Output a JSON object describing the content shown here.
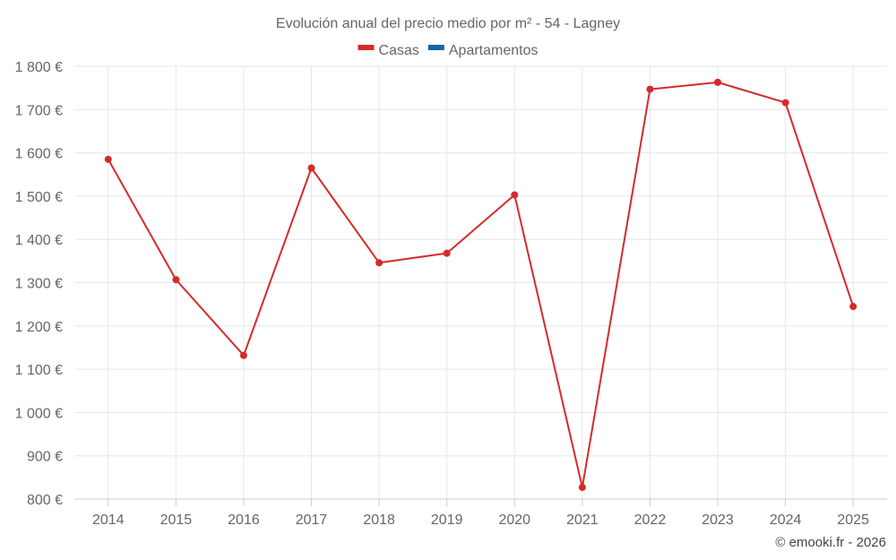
{
  "chart_data": {
    "type": "line",
    "title": "Evolución anual del precio medio por m² - 54 - Lagney",
    "legend": [
      {
        "name": "Casas",
        "color": "#d62a2a"
      },
      {
        "name": "Apartamentos",
        "color": "#1565a0"
      }
    ],
    "categories": [
      "2014",
      "2015",
      "2016",
      "2017",
      "2018",
      "2019",
      "2020",
      "2021",
      "2022",
      "2023",
      "2024",
      "2025"
    ],
    "series": [
      {
        "name": "Casas",
        "color": "#d62a2a",
        "values": [
          1585,
          1307,
          1132,
          1565,
          1346,
          1368,
          1503,
          827,
          1747,
          1763,
          1716,
          1245
        ]
      }
    ],
    "ylim": [
      800,
      1800
    ],
    "yticks": [
      800,
      900,
      1000,
      1100,
      1200,
      1300,
      1400,
      1500,
      1600,
      1700,
      1800
    ],
    "ytick_labels": [
      "800 €",
      "900 €",
      "1 000 €",
      "1 100 €",
      "1 200 €",
      "1 300 €",
      "1 400 €",
      "1 500 €",
      "1 600 €",
      "1 700 €",
      "1 800 €"
    ],
    "xlabel": "",
    "ylabel": "",
    "grid": true,
    "legend_position": "top-center"
  },
  "credit": "© emooki.fr - 2026"
}
